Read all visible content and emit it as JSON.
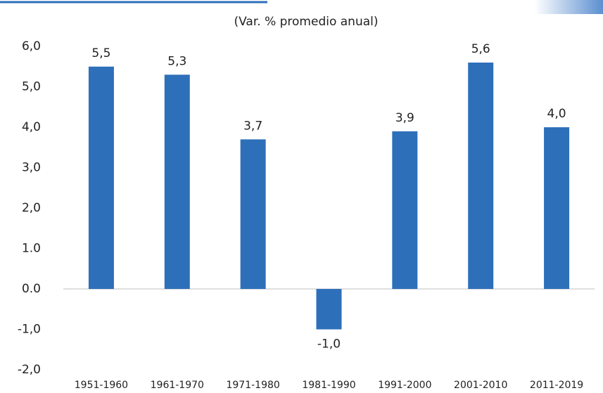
{
  "chart_data": {
    "type": "bar",
    "subtitle": "(Var. % promedio anual)",
    "categories": [
      "1951-1960",
      "1961-1970",
      "1971-1980",
      "1981-1990",
      "1991-2000",
      "2001-2010",
      "2011-2019"
    ],
    "values": [
      5.5,
      5.3,
      3.7,
      -1.0,
      3.9,
      5.6,
      4.0
    ],
    "value_labels": [
      "5,5",
      "5,3",
      "3,7",
      "-1,0",
      "3,9",
      "5,6",
      "4,0"
    ],
    "color": "#2e6fba",
    "ylim": [
      -2,
      6
    ],
    "yticks": [
      {
        "value": 6,
        "label": "6,0"
      },
      {
        "value": 5,
        "label": "5,0"
      },
      {
        "value": 4,
        "label": "4,0"
      },
      {
        "value": 3,
        "label": "3,0"
      },
      {
        "value": 2,
        "label": "2,0"
      },
      {
        "value": 1,
        "label": "1.0"
      },
      {
        "value": 0,
        "label": "0.0"
      },
      {
        "value": -1,
        "label": "-1,0"
      },
      {
        "value": -2,
        "label": "-2,0"
      }
    ],
    "grid": false
  }
}
